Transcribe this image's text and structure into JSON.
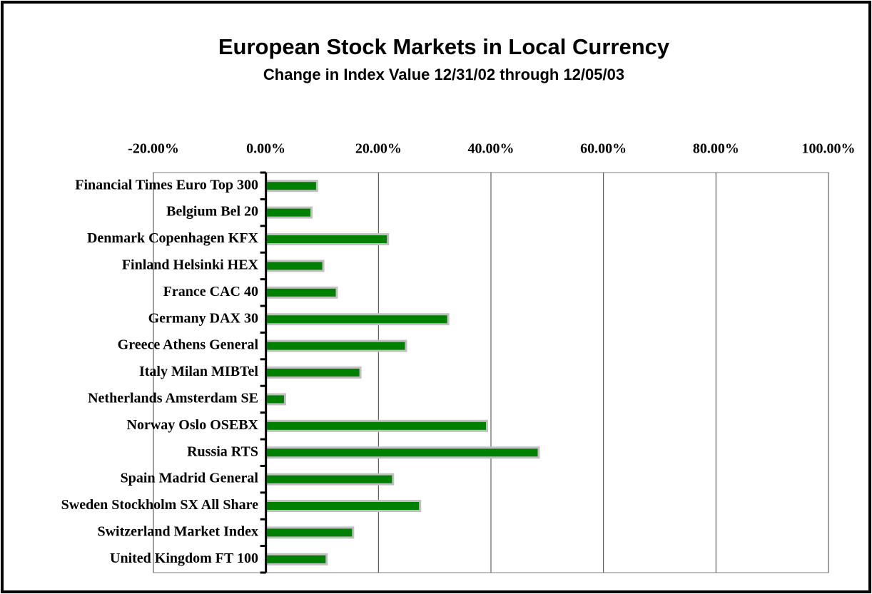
{
  "chart_data": {
    "type": "bar",
    "orientation": "horizontal",
    "title": "European Stock Markets in Local Currency",
    "subtitle": "Change in Index Value 12/31/02 through 12/05/03",
    "categories": [
      "Financial Times Euro Top 300",
      "Belgium Bel 20",
      "Denmark Copenhagen KFX",
      "Finland Helsinki HEX",
      "France CAC 40",
      "Germany DAX 30",
      "Greece Athens General",
      "Italy Milan MIBTel",
      "Netherlands Amsterdam SE",
      "Norway Oslo OSEBX",
      "Russia RTS",
      "Spain Madrid General",
      "Sweden Stockholm SX All Share",
      "Switzerland Market Index",
      "United Kingdom FT 100"
    ],
    "values": [
      9.1,
      8.1,
      21.7,
      10.2,
      12.6,
      32.4,
      24.9,
      16.8,
      3.4,
      39.3,
      48.5,
      22.6,
      27.4,
      15.5,
      10.8
    ],
    "color": "#008000",
    "xlim": [
      -20,
      100
    ],
    "xticks": [
      {
        "value": -20,
        "label": "-20.00%"
      },
      {
        "value": 0,
        "label": "0.00%"
      },
      {
        "value": 20,
        "label": "20.00%"
      },
      {
        "value": 40,
        "label": "40.00%"
      },
      {
        "value": 60,
        "label": "60.00%"
      },
      {
        "value": 80,
        "label": "80.00%"
      },
      {
        "value": 100,
        "label": "100.00%"
      }
    ],
    "grid": true
  }
}
